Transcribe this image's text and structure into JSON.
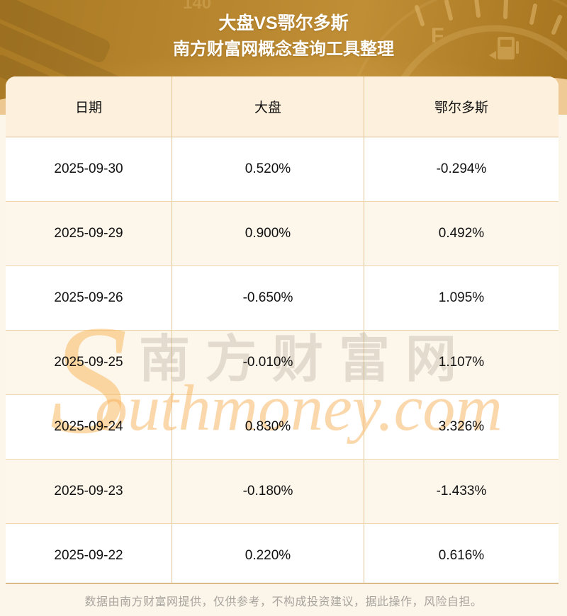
{
  "banner": {
    "title": "大盘VS鄂尔多斯",
    "subtitle": "南方财富网概念查询工具整理",
    "gauge_full_label": "F",
    "gauge_number": "140"
  },
  "chart_data": {
    "type": "table",
    "title": "大盘VS鄂尔多斯",
    "subtitle": "南方财富网概念查询工具整理",
    "columns": [
      "日期",
      "大盘",
      "鄂尔多斯"
    ],
    "rows": [
      [
        "2025-09-30",
        "0.520%",
        "-0.294%"
      ],
      [
        "2025-09-29",
        "0.900%",
        "0.492%"
      ],
      [
        "2025-09-26",
        "-0.650%",
        "1.095%"
      ],
      [
        "2025-09-25",
        "-0.010%",
        "1.107%"
      ],
      [
        "2025-09-24",
        "0.830%",
        "3.326%"
      ],
      [
        "2025-09-23",
        "-0.180%",
        "-1.433%"
      ],
      [
        "2025-09-22",
        "0.220%",
        "0.616%"
      ]
    ],
    "layout": {
      "grid": true,
      "alternating_rows": true,
      "header_position": "top"
    }
  },
  "watermark": {
    "initial": "S",
    "script": "outhmoney.com",
    "cjk": "南方财富网"
  },
  "footer": {
    "disclaimer": "数据由南方财富网提供，仅供参考，不构成投资建议，据此操作，风险自担。"
  },
  "colors": {
    "banner_gold": "#b8862e",
    "banner_gold_dark": "#a6741e",
    "banner_edge_tan": "#f3cf9c",
    "page_background": "#fbf5ea",
    "header_row_bg": "#fdf0dc",
    "row_alt_bg": "#fdf6eb",
    "row_bg": "#ffffff",
    "table_border": "#e3c493",
    "table_bottom_border": "#d9ba88",
    "cell_text": "#111111",
    "footer_text": "#a8a49e",
    "watermark_orange": "#f8ba62",
    "title_text": "#ffffff"
  }
}
